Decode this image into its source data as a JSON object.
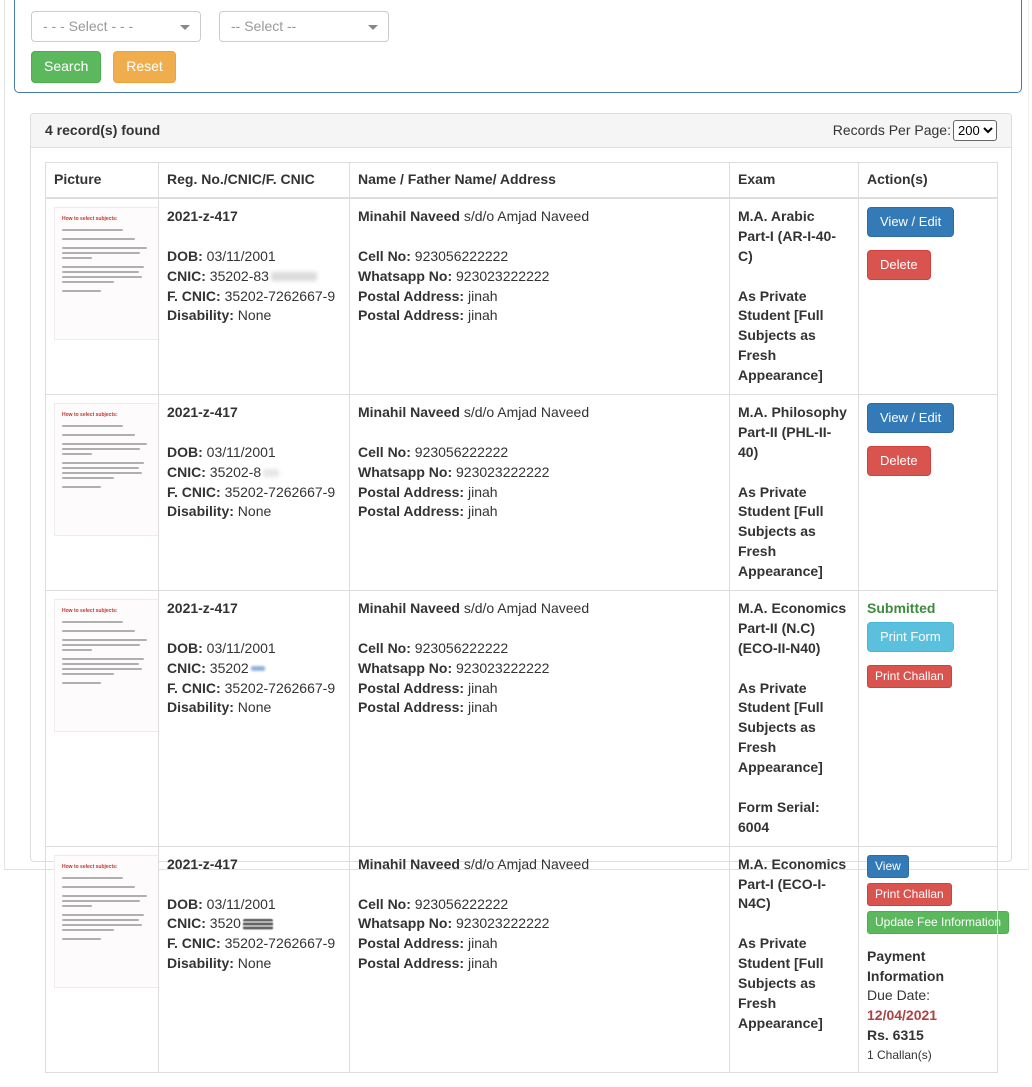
{
  "colors": {
    "primary_blue": "#337ab7",
    "danger_red": "#d9534f",
    "info_cyan": "#5bc0de",
    "success_green": "#5cb85c",
    "warning_orange": "#f0ad4e",
    "submitted_green": "#3d8b3d",
    "due_date_red": "#a94442",
    "search_panel_border": "#4a7ba6"
  },
  "search_panel": {
    "select1_value": "- - - Select - - -",
    "select2_value": "-- Select --",
    "search_label": "Search",
    "reset_label": "Reset"
  },
  "results_panel": {
    "header": {
      "count_text": "4 record(s) found",
      "per_page_label": "Records Per Page:",
      "per_page_value": "200"
    },
    "table": {
      "columns": [
        "Picture",
        "Reg. No./CNIC/F. CNIC",
        "Name / Father Name/ Address",
        "Exam",
        "Action(s)"
      ],
      "thumb_title": "How to select subjects:",
      "rows": [
        {
          "reg_no": "2021-z-417",
          "dob_label": "DOB:",
          "dob": "03/11/2001",
          "cnic_label": "CNIC:",
          "cnic": "35202-83",
          "fcnic_label": "F. CNIC:",
          "fcnic": "35202-7262667-9",
          "dis_label": "Disability:",
          "dis": "None",
          "name": "Minahil Naveed",
          "name_suffix": "s/d/o Amjad Naveed",
          "cell_label": "Cell No:",
          "cell": "923056222222",
          "wa_label": "Whatsapp No:",
          "wa": "923023222222",
          "postal1_label": "Postal Address:",
          "postal1": "jinah",
          "postal2_label": "Postal Address:",
          "postal2": "jinah",
          "exam_title": "M.A. Arabic Part-I (AR-I-40-C)",
          "exam_mode": "As Private Student [Full Subjects as Fresh Appearance]",
          "actions": {
            "buttons": [
              {
                "label": "View / Edit",
                "style": "primary",
                "layout": "block",
                "size": "default"
              },
              {
                "label": "Delete",
                "style": "danger",
                "layout": "block",
                "size": "default"
              }
            ]
          }
        },
        {
          "reg_no": "2021-z-417",
          "dob_label": "DOB:",
          "dob": "03/11/2001",
          "cnic_label": "CNIC:",
          "cnic": "35202-8",
          "fcnic_label": "F. CNIC:",
          "fcnic": "35202-7262667-9",
          "dis_label": "Disability:",
          "dis": "None",
          "name": "Minahil Naveed",
          "name_suffix": "s/d/o Amjad Naveed",
          "cell_label": "Cell No:",
          "cell": "923056222222",
          "wa_label": "Whatsapp No:",
          "wa": "923023222222",
          "postal1_label": "Postal Address:",
          "postal1": "jinah",
          "postal2_label": "Postal Address:",
          "postal2": "jinah",
          "exam_title": "M.A. Philosophy Part-II (PHL-II-40)",
          "exam_mode": "As Private Student [Full Subjects as Fresh Appearance]",
          "actions": {
            "buttons": [
              {
                "label": "View / Edit",
                "style": "primary",
                "layout": "block",
                "size": "default"
              },
              {
                "label": "Delete",
                "style": "danger",
                "layout": "block",
                "size": "default"
              }
            ]
          }
        },
        {
          "reg_no": "2021-z-417",
          "dob_label": "DOB:",
          "dob": "03/11/2001",
          "cnic_label": "CNIC:",
          "cnic": "35202",
          "fcnic_label": "F. CNIC:",
          "fcnic": "35202-7262667-9",
          "dis_label": "Disability:",
          "dis": "None",
          "name": "Minahil Naveed",
          "name_suffix": "s/d/o Amjad Naveed",
          "cell_label": "Cell No:",
          "cell": "923056222222",
          "wa_label": "Whatsapp No:",
          "wa": "923023222222",
          "postal1_label": "Postal Address:",
          "postal1": "jinah",
          "postal2_label": "Postal Address:",
          "postal2": "jinah",
          "exam_title": "M.A. Economics Part-II (N.C) (ECO-II-N40)",
          "exam_mode": "As Private Student [Full Subjects as Fresh Appearance]",
          "form_serial": "Form Serial: 6004",
          "actions": {
            "status": "Submitted",
            "buttons": [
              {
                "label": "Print Form",
                "style": "info",
                "layout": "block",
                "size": "default"
              },
              {
                "label": "Print Challan",
                "style": "danger",
                "layout": "block",
                "size": "sm"
              }
            ]
          }
        },
        {
          "reg_no": "2021-z-417",
          "dob_label": "DOB:",
          "dob": "03/11/2001",
          "cnic_label": "CNIC:",
          "cnic": "3520",
          "fcnic_label": "F. CNIC:",
          "fcnic": "35202-7262667-9",
          "dis_label": "Disability:",
          "dis": "None",
          "name": "Minahil Naveed",
          "name_suffix": "s/d/o Amjad Naveed",
          "cell_label": "Cell No:",
          "cell": "923056222222",
          "wa_label": "Whatsapp No:",
          "wa": "923023222222",
          "postal1_label": "Postal Address:",
          "postal1": "jinah",
          "postal2_label": "Postal Address:",
          "postal2": "jinah",
          "exam_title": "M.A. Economics Part-I (ECO-I-N4C)",
          "exam_mode": "As Private Student [Full Subjects as Fresh Appearance]",
          "actions": {
            "buttons": [
              {
                "label": "View",
                "style": "primary",
                "layout": "inline",
                "size": "sm"
              },
              {
                "label": "Print Challan",
                "style": "danger",
                "layout": "inline",
                "size": "sm"
              },
              {
                "label": "Update Fee Information",
                "style": "success",
                "layout": "block",
                "size": "sm"
              }
            ],
            "payment": {
              "heading": "Payment Information",
              "due_label": "Due Date:",
              "due_date": "12/04/2021",
              "amount": "Rs. 6315",
              "challans": "1 Challan(s)"
            }
          }
        }
      ]
    }
  }
}
